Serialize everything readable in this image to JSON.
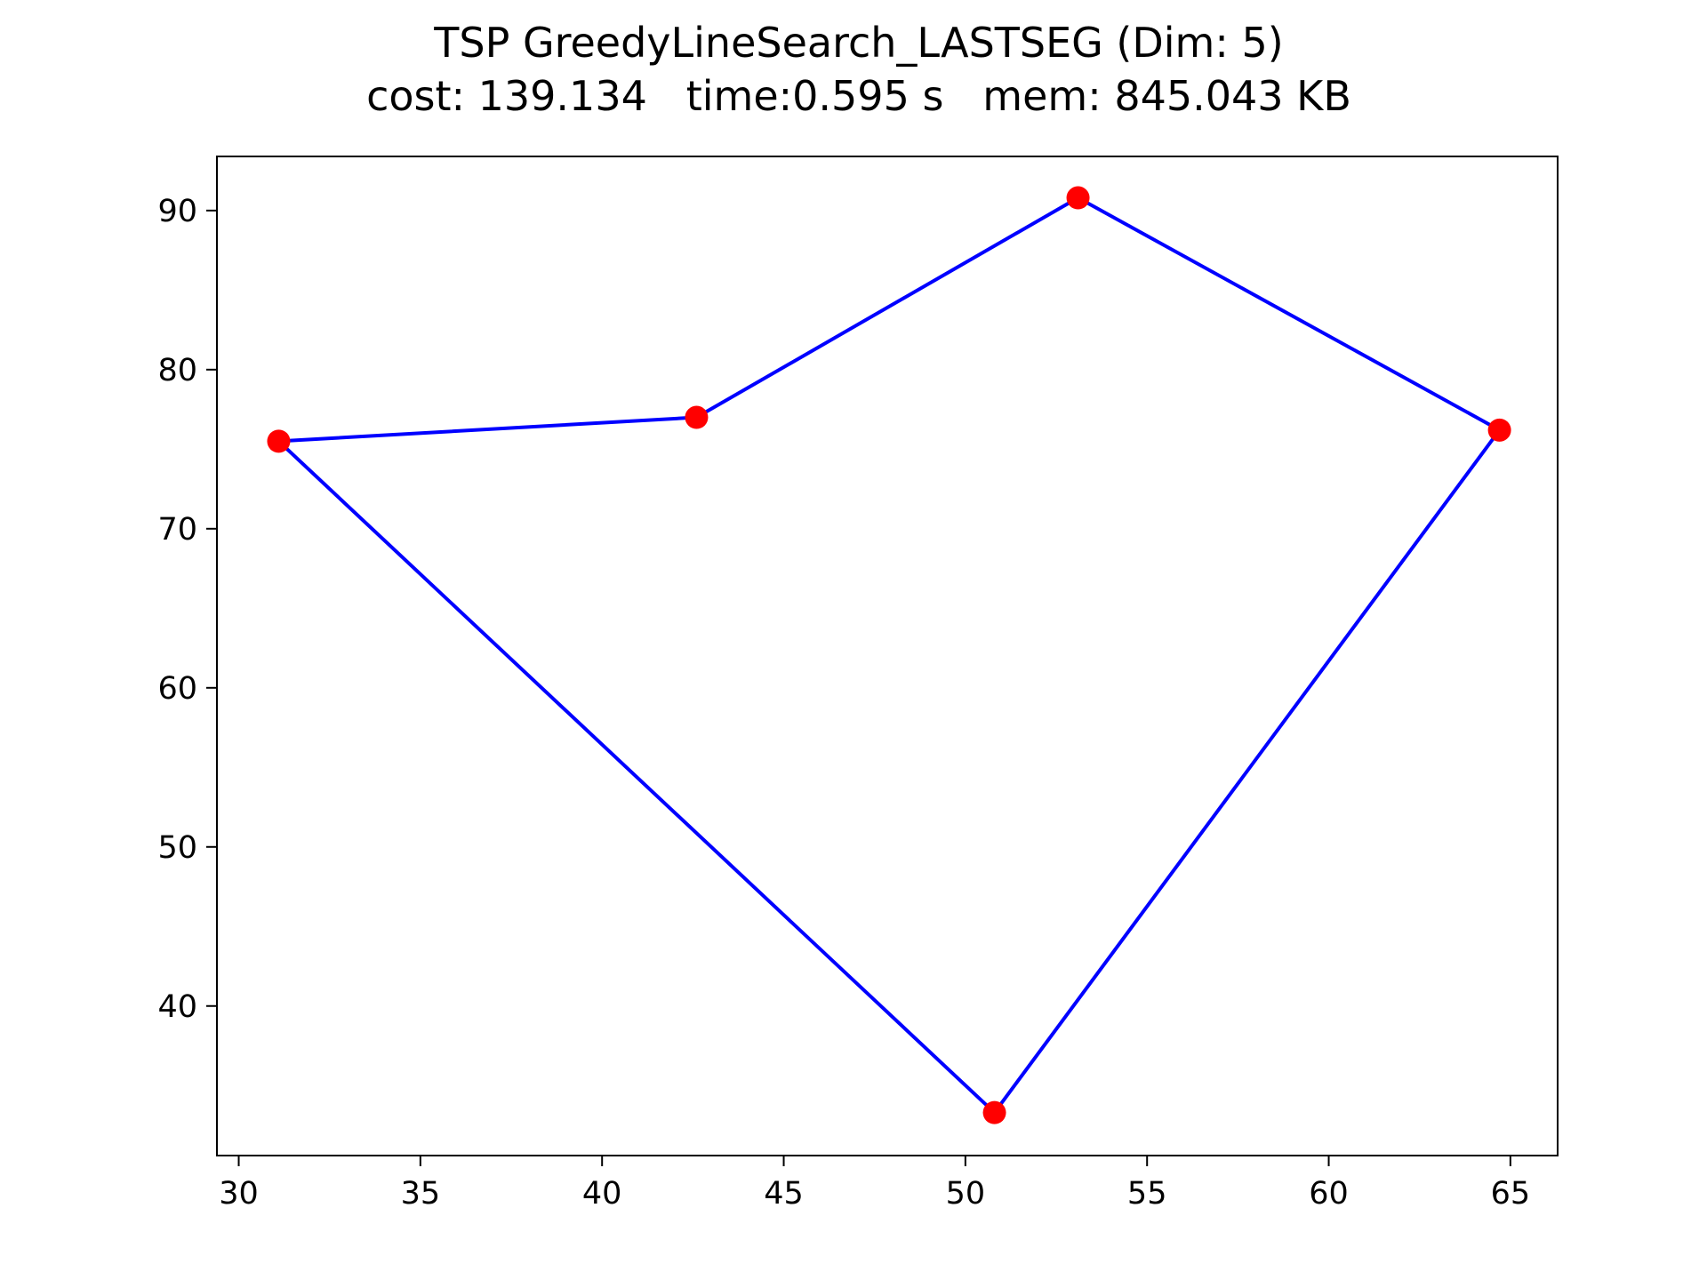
{
  "chart_data": {
    "type": "line",
    "title": "TSP GreedyLineSearch_LASTSEG (Dim: 5)",
    "subtitle": "cost: 139.134   time:0.595 s   mem: 845.043 KB",
    "xlabel": "",
    "ylabel": "",
    "xlim": [
      29.4,
      66.3
    ],
    "ylim": [
      30.6,
      93.4
    ],
    "xticks": [
      30,
      35,
      40,
      45,
      50,
      55,
      60,
      65
    ],
    "yticks": [
      40,
      50,
      60,
      70,
      80,
      90
    ],
    "grid": false,
    "points": [
      {
        "x": 31.1,
        "y": 75.5
      },
      {
        "x": 42.6,
        "y": 77.0
      },
      {
        "x": 53.1,
        "y": 90.8
      },
      {
        "x": 64.7,
        "y": 76.2
      },
      {
        "x": 50.8,
        "y": 33.3
      }
    ],
    "tour": [
      0,
      1,
      2,
      3,
      4,
      0
    ],
    "colors": {
      "points": "#ff0000",
      "path": "#0000ff",
      "axes": "#000000"
    }
  }
}
